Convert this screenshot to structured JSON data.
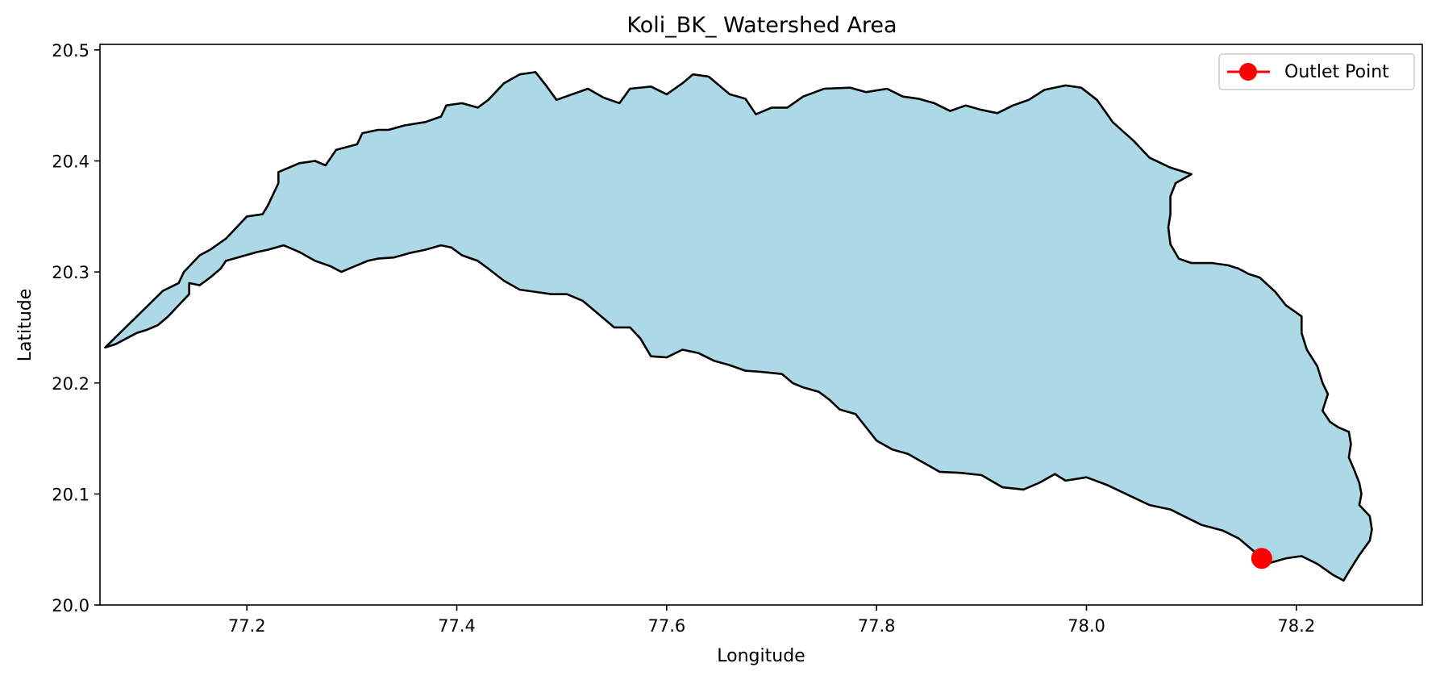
{
  "chart_data": {
    "type": "map",
    "title": "Koli_BK_ Watershed Area",
    "xlabel": "Longitude",
    "ylabel": "Latitude",
    "xlim": [
      77.06,
      78.32
    ],
    "ylim": [
      20.0,
      20.505
    ],
    "xticks": [
      77.2,
      77.4,
      77.6,
      77.8,
      78.0,
      78.2
    ],
    "xtick_labels": [
      "77.2",
      "77.4",
      "77.6",
      "77.8",
      "78.0",
      "78.2"
    ],
    "yticks": [
      20.0,
      20.1,
      20.2,
      20.3,
      20.4,
      20.5
    ],
    "ytick_labels": [
      "20.0",
      "20.1",
      "20.2",
      "20.3",
      "20.4",
      "20.5"
    ],
    "grid": false,
    "legend": {
      "placement": "top-right",
      "entries": [
        {
          "label": "Outlet Point",
          "color": "#ff0000",
          "marker": "circle"
        }
      ]
    },
    "watershed": {
      "fill": "#add8e6",
      "edge": "#000000",
      "boundary": [
        [
          77.12,
          20.283
        ],
        [
          77.135,
          20.29
        ],
        [
          77.14,
          20.3
        ],
        [
          77.155,
          20.315
        ],
        [
          77.165,
          20.32
        ],
        [
          77.18,
          20.33
        ],
        [
          77.19,
          20.34
        ],
        [
          77.2,
          20.35
        ],
        [
          77.215,
          20.352
        ],
        [
          77.22,
          20.36
        ],
        [
          77.23,
          20.38
        ],
        [
          77.23,
          20.39
        ],
        [
          77.25,
          20.398
        ],
        [
          77.265,
          20.4
        ],
        [
          77.275,
          20.396
        ],
        [
          77.285,
          20.41
        ],
        [
          77.305,
          20.415
        ],
        [
          77.31,
          20.425
        ],
        [
          77.325,
          20.428
        ],
        [
          77.335,
          20.428
        ],
        [
          77.35,
          20.432
        ],
        [
          77.37,
          20.435
        ],
        [
          77.385,
          20.44
        ],
        [
          77.39,
          20.45
        ],
        [
          77.405,
          20.452
        ],
        [
          77.42,
          20.448
        ],
        [
          77.43,
          20.455
        ],
        [
          77.445,
          20.47
        ],
        [
          77.46,
          20.478
        ],
        [
          77.475,
          20.48
        ],
        [
          77.485,
          20.468
        ],
        [
          77.495,
          20.455
        ],
        [
          77.51,
          20.46
        ],
        [
          77.525,
          20.465
        ],
        [
          77.54,
          20.457
        ],
        [
          77.555,
          20.452
        ],
        [
          77.565,
          20.465
        ],
        [
          77.585,
          20.467
        ],
        [
          77.6,
          20.46
        ],
        [
          77.615,
          20.47
        ],
        [
          77.625,
          20.478
        ],
        [
          77.64,
          20.476
        ],
        [
          77.66,
          20.46
        ],
        [
          77.675,
          20.456
        ],
        [
          77.685,
          20.442
        ],
        [
          77.7,
          20.448
        ],
        [
          77.715,
          20.448
        ],
        [
          77.73,
          20.458
        ],
        [
          77.75,
          20.465
        ],
        [
          77.775,
          20.466
        ],
        [
          77.79,
          20.462
        ],
        [
          77.81,
          20.465
        ],
        [
          77.825,
          20.458
        ],
        [
          77.84,
          20.456
        ],
        [
          77.855,
          20.452
        ],
        [
          77.87,
          20.445
        ],
        [
          77.885,
          20.45
        ],
        [
          77.9,
          20.446
        ],
        [
          77.915,
          20.443
        ],
        [
          77.93,
          20.45
        ],
        [
          77.945,
          20.455
        ],
        [
          77.96,
          20.464
        ],
        [
          77.98,
          20.468
        ],
        [
          77.995,
          20.466
        ],
        [
          78.01,
          20.455
        ],
        [
          78.025,
          20.435
        ],
        [
          78.045,
          20.418
        ],
        [
          78.06,
          20.403
        ],
        [
          78.08,
          20.394
        ],
        [
          78.1,
          20.388
        ],
        [
          78.085,
          20.38
        ],
        [
          78.08,
          20.368
        ],
        [
          78.08,
          20.352
        ],
        [
          78.078,
          20.34
        ],
        [
          78.08,
          20.325
        ],
        [
          78.088,
          20.312
        ],
        [
          78.1,
          20.308
        ],
        [
          78.12,
          20.308
        ],
        [
          78.135,
          20.306
        ],
        [
          78.145,
          20.303
        ],
        [
          78.155,
          20.298
        ],
        [
          78.165,
          20.295
        ],
        [
          78.18,
          20.282
        ],
        [
          78.19,
          20.27
        ],
        [
          78.205,
          20.26
        ],
        [
          78.205,
          20.245
        ],
        [
          78.21,
          20.23
        ],
        [
          78.22,
          20.215
        ],
        [
          78.225,
          20.2
        ],
        [
          78.23,
          20.19
        ],
        [
          78.225,
          20.175
        ],
        [
          78.232,
          20.165
        ],
        [
          78.24,
          20.16
        ],
        [
          78.25,
          20.156
        ],
        [
          78.252,
          20.145
        ],
        [
          78.25,
          20.133
        ],
        [
          78.255,
          20.122
        ],
        [
          78.26,
          20.11
        ],
        [
          78.262,
          20.1
        ],
        [
          78.26,
          20.09
        ],
        [
          78.27,
          20.08
        ],
        [
          78.272,
          20.068
        ],
        [
          78.27,
          20.058
        ],
        [
          78.26,
          20.045
        ],
        [
          78.25,
          20.03
        ],
        [
          78.245,
          20.022
        ],
        [
          78.235,
          20.027
        ],
        [
          78.22,
          20.037
        ],
        [
          78.205,
          20.044
        ],
        [
          78.19,
          20.042
        ],
        [
          78.175,
          20.038
        ],
        [
          78.16,
          20.048
        ],
        [
          78.145,
          20.06
        ],
        [
          78.13,
          20.067
        ],
        [
          78.11,
          20.072
        ],
        [
          78.095,
          20.079
        ],
        [
          78.08,
          20.086
        ],
        [
          78.06,
          20.09
        ],
        [
          78.04,
          20.099
        ],
        [
          78.02,
          20.108
        ],
        [
          78.0,
          20.115
        ],
        [
          77.98,
          20.112
        ],
        [
          77.97,
          20.118
        ],
        [
          77.955,
          20.11
        ],
        [
          77.94,
          20.104
        ],
        [
          77.92,
          20.106
        ],
        [
          77.9,
          20.117
        ],
        [
          77.88,
          20.119
        ],
        [
          77.86,
          20.12
        ],
        [
          77.845,
          20.128
        ],
        [
          77.83,
          20.136
        ],
        [
          77.815,
          20.14
        ],
        [
          77.8,
          20.148
        ],
        [
          77.79,
          20.16
        ],
        [
          77.78,
          20.172
        ],
        [
          77.765,
          20.176
        ],
        [
          77.755,
          20.185
        ],
        [
          77.745,
          20.192
        ],
        [
          77.73,
          20.196
        ],
        [
          77.72,
          20.2
        ],
        [
          77.71,
          20.208
        ],
        [
          77.69,
          20.21
        ],
        [
          77.675,
          20.211
        ],
        [
          77.66,
          20.216
        ],
        [
          77.645,
          20.22
        ],
        [
          77.63,
          20.227
        ],
        [
          77.615,
          20.23
        ],
        [
          77.6,
          20.223
        ],
        [
          77.585,
          20.224
        ],
        [
          77.575,
          20.24
        ],
        [
          77.565,
          20.25
        ],
        [
          77.55,
          20.25
        ],
        [
          77.535,
          20.262
        ],
        [
          77.52,
          20.274
        ],
        [
          77.505,
          20.28
        ],
        [
          77.49,
          20.28
        ],
        [
          77.475,
          20.282
        ],
        [
          77.46,
          20.284
        ],
        [
          77.445,
          20.292
        ],
        [
          77.43,
          20.303
        ],
        [
          77.42,
          20.31
        ],
        [
          77.405,
          20.315
        ],
        [
          77.395,
          20.322
        ],
        [
          77.385,
          20.324
        ],
        [
          77.37,
          20.32
        ],
        [
          77.355,
          20.317
        ],
        [
          77.34,
          20.313
        ],
        [
          77.325,
          20.312
        ],
        [
          77.315,
          20.31
        ],
        [
          77.3,
          20.304
        ],
        [
          77.29,
          20.3
        ],
        [
          77.28,
          20.305
        ],
        [
          77.265,
          20.31
        ],
        [
          77.25,
          20.318
        ],
        [
          77.235,
          20.324
        ],
        [
          77.22,
          20.32
        ],
        [
          77.21,
          20.318
        ],
        [
          77.195,
          20.314
        ],
        [
          77.18,
          20.31
        ],
        [
          77.175,
          20.303
        ],
        [
          77.165,
          20.295
        ],
        [
          77.155,
          20.288
        ],
        [
          77.145,
          20.29
        ],
        [
          77.145,
          20.28
        ],
        [
          77.135,
          20.27
        ],
        [
          77.125,
          20.26
        ],
        [
          77.115,
          20.252
        ],
        [
          77.105,
          20.248
        ],
        [
          77.095,
          20.245
        ],
        [
          77.085,
          20.24
        ],
        [
          77.075,
          20.235
        ],
        [
          77.065,
          20.232
        ]
      ]
    },
    "series": [
      {
        "name": "Outlet Point",
        "x": [
          78.167
        ],
        "y": [
          20.042
        ]
      }
    ]
  }
}
